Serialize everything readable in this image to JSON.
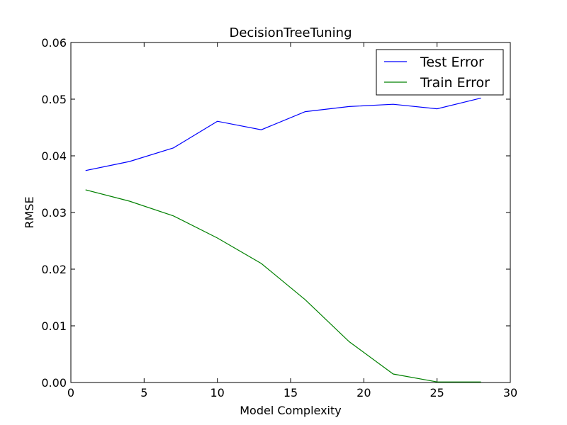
{
  "chart_data": {
    "type": "line",
    "title": "DecisionTreeTuning",
    "xlabel": "Model Complexity",
    "ylabel": "RMSE",
    "xlim": [
      0,
      30
    ],
    "ylim": [
      0,
      0.06
    ],
    "xticks": [
      "0",
      "5",
      "10",
      "15",
      "20",
      "25",
      "30"
    ],
    "yticks": [
      "0.00",
      "0.01",
      "0.02",
      "0.03",
      "0.04",
      "0.05",
      "0.06"
    ],
    "x": [
      1,
      4,
      7,
      10,
      13,
      16,
      19,
      22,
      25,
      28
    ],
    "series": [
      {
        "name": "Test Error",
        "color": "#0000ff",
        "values": [
          0.0374,
          0.039,
          0.0414,
          0.0461,
          0.0446,
          0.0478,
          0.0487,
          0.0491,
          0.0483,
          0.0502
        ]
      },
      {
        "name": "Train Error",
        "color": "#008000",
        "values": [
          0.034,
          0.032,
          0.0294,
          0.0255,
          0.021,
          0.0146,
          0.0072,
          0.0015,
          0.0001,
          0.0001
        ]
      }
    ],
    "grid": false,
    "legend_position": "top-right"
  }
}
